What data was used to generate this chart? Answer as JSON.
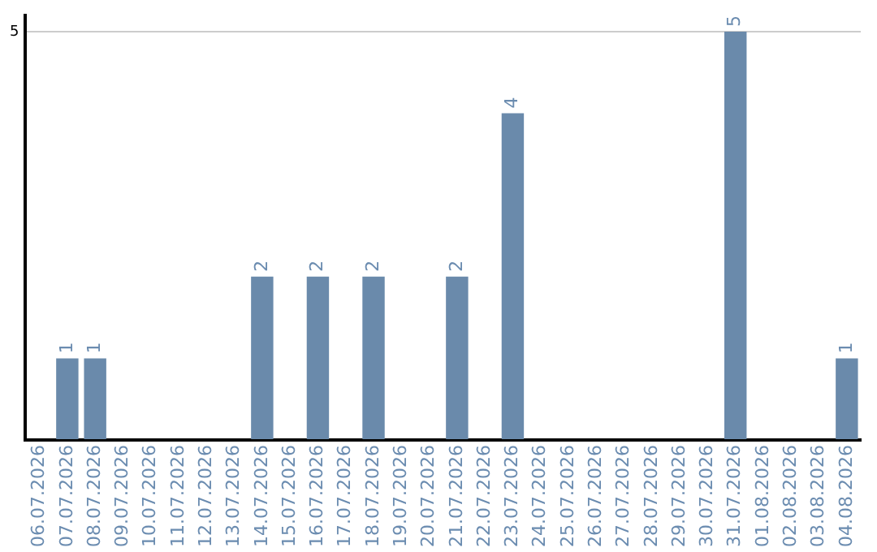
{
  "chart_data": {
    "type": "bar",
    "categories": [
      "06.07.2026",
      "07.07.2026",
      "08.07.2026",
      "09.07.2026",
      "10.07.2026",
      "11.07.2026",
      "12.07.2026",
      "13.07.2026",
      "14.07.2026",
      "15.07.2026",
      "16.07.2026",
      "17.07.2026",
      "18.07.2026",
      "19.07.2026",
      "20.07.2026",
      "21.07.2026",
      "22.07.2026",
      "23.07.2026",
      "24.07.2026",
      "25.07.2026",
      "26.07.2026",
      "27.07.2026",
      "28.07.2026",
      "29.07.2026",
      "30.07.2026",
      "31.07.2026",
      "01.08.2026",
      "02.08.2026",
      "03.08.2026",
      "04.08.2026"
    ],
    "values": [
      null,
      1,
      1,
      null,
      null,
      null,
      null,
      null,
      2,
      null,
      2,
      null,
      2,
      null,
      null,
      2,
      null,
      4,
      null,
      null,
      null,
      null,
      null,
      null,
      null,
      5,
      null,
      null,
      null,
      1
    ],
    "color": "#6a8aab",
    "ylim": [
      0,
      5.2
    ],
    "yticks": [
      {
        "value": 0,
        "label": null
      },
      5
    ],
    "grid": "y",
    "data_labels": true,
    "legend": false
  }
}
